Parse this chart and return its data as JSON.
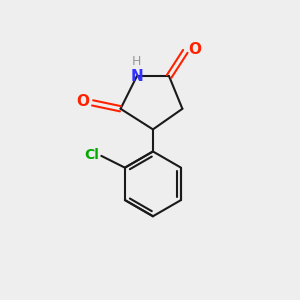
{
  "background_color": "#eeeeee",
  "bond_color": "#1a1a1a",
  "N_color": "#3333ff",
  "O_color": "#ff2200",
  "Cl_color": "#00aa00",
  "H_color": "#999999",
  "line_width": 1.5,
  "font_size": 10,
  "fig_size": [
    3.0,
    3.0
  ],
  "dpi": 100,
  "xlim": [
    0,
    10
  ],
  "ylim": [
    0,
    10
  ]
}
